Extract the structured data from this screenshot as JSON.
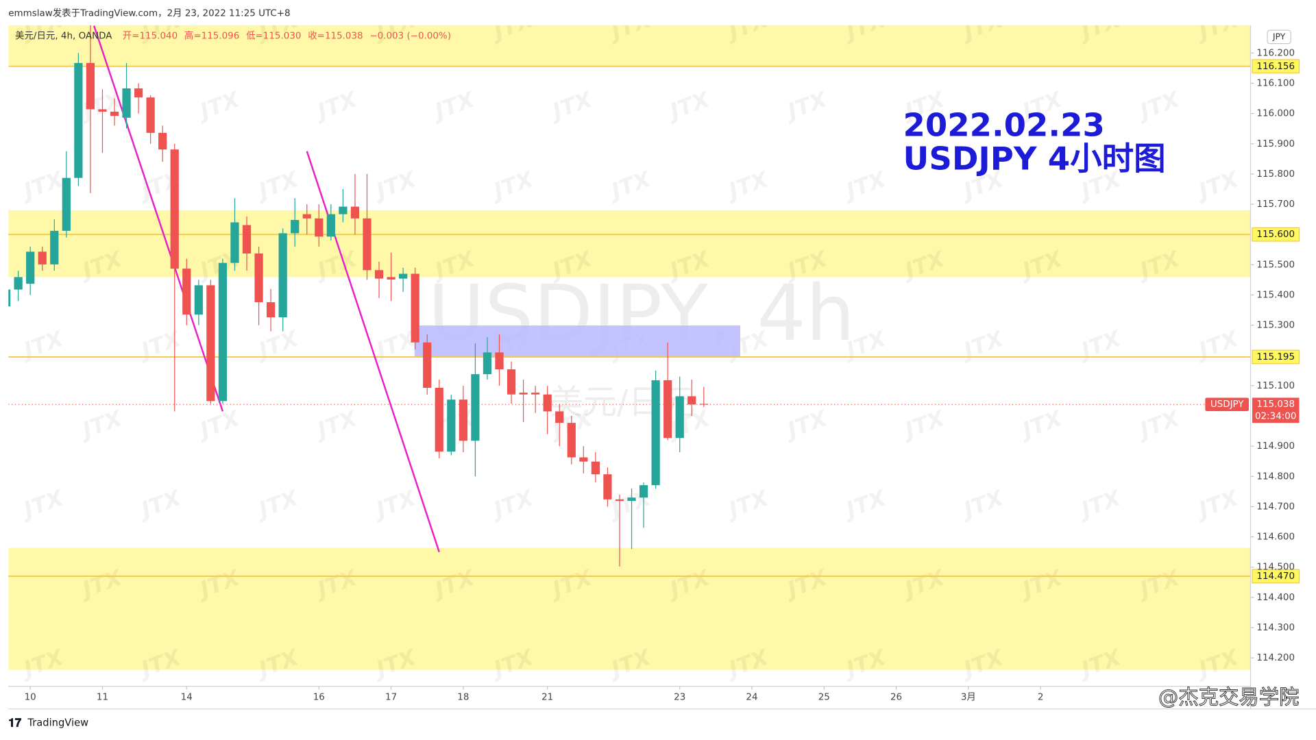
{
  "chart_data": {
    "type": "candlestick",
    "header": "emmslaw发表于TradingView.com，2月 23, 2022 11:25 UTC+8",
    "legend_title": "美元/日元, 4h, OANDA",
    "legend_values": [
      "开=115.040",
      "高=115.096",
      "低=115.030",
      "收=115.038",
      "−0.003 (−0.00%)"
    ],
    "currency": "JPY",
    "annotation": [
      "2022.02.23",
      "USDJPY 4小时图"
    ],
    "watermark": "USDJPY, 4h",
    "watermark_sub": "美元/日元",
    "tile_text": "JTX",
    "footer": "TradingView",
    "credit": "@杰克交易学院",
    "up_color": "#26a69a",
    "down_color": "#ef5350",
    "x": [
      0,
      1,
      2,
      3,
      4,
      5,
      6,
      7,
      8,
      9,
      10,
      11,
      12,
      13,
      14,
      15,
      16,
      17,
      18,
      19,
      20,
      21,
      22,
      23,
      24,
      25,
      26,
      27,
      28,
      29,
      30,
      31,
      32,
      33,
      34,
      35,
      36,
      37,
      38,
      39,
      40,
      41,
      42,
      43,
      44,
      45,
      46,
      47,
      48,
      49,
      50,
      51,
      52,
      53,
      54,
      55,
      56,
      57,
      58
    ],
    "open": [
      115.362,
      115.418,
      115.437,
      115.543,
      115.501,
      115.612,
      115.787,
      116.167,
      116.014,
      116.006,
      115.986,
      116.083,
      116.053,
      115.936,
      115.881,
      115.487,
      115.335,
      115.432,
      115.049,
      115.506,
      115.631,
      115.537,
      115.376,
      115.326,
      115.604,
      115.667,
      115.653,
      115.593,
      115.667,
      115.692,
      115.653,
      115.482,
      115.459,
      115.454,
      115.47,
      115.243,
      115.093,
      114.882,
      115.054,
      114.918,
      115.138,
      115.21,
      115.154,
      115.077,
      115.077,
      115.071,
      115.015,
      114.977,
      114.863,
      114.849,
      114.807,
      114.724,
      114.719,
      114.73,
      114.771,
      115.118,
      114.927,
      115.065,
      115.04
    ],
    "high": [
      115.44,
      115.48,
      115.56,
      115.56,
      115.65,
      115.875,
      116.2,
      116.292,
      116.08,
      116.05,
      116.167,
      116.1,
      116.06,
      115.96,
      115.9,
      115.52,
      115.45,
      115.45,
      115.52,
      115.72,
      115.66,
      115.56,
      115.42,
      115.62,
      115.72,
      115.7,
      115.7,
      115.7,
      115.75,
      115.8,
      115.8,
      115.51,
      115.54,
      115.49,
      115.49,
      115.27,
      115.12,
      115.07,
      115.1,
      115.24,
      115.26,
      115.27,
      115.18,
      115.12,
      115.1,
      115.1,
      115.04,
      115.0,
      114.9,
      114.88,
      114.83,
      114.74,
      114.76,
      114.78,
      115.15,
      115.243,
      115.13,
      115.12,
      115.096
    ],
    "low": [
      115.33,
      115.38,
      115.4,
      115.48,
      115.48,
      115.59,
      115.76,
      115.737,
      115.87,
      115.96,
      115.95,
      116.0,
      115.9,
      115.84,
      115.015,
      115.3,
      115.3,
      115.04,
      115.04,
      115.48,
      115.48,
      115.3,
      115.28,
      115.28,
      115.56,
      115.6,
      115.56,
      115.58,
      115.64,
      115.6,
      115.45,
      115.39,
      115.38,
      115.41,
      115.22,
      115.07,
      114.86,
      114.87,
      114.88,
      114.8,
      115.12,
      115.1,
      115.04,
      114.98,
      115.01,
      114.94,
      114.9,
      114.84,
      114.81,
      114.78,
      114.7,
      114.502,
      114.56,
      114.63,
      114.76,
      114.92,
      114.88,
      115.0,
      115.03
    ],
    "close": [
      115.418,
      115.459,
      115.543,
      115.501,
      115.612,
      115.787,
      116.167,
      116.014,
      116.006,
      115.992,
      116.083,
      116.053,
      115.936,
      115.881,
      115.487,
      115.335,
      115.432,
      115.049,
      115.506,
      115.64,
      115.537,
      115.376,
      115.326,
      115.604,
      115.648,
      115.653,
      115.593,
      115.667,
      115.692,
      115.653,
      115.482,
      115.454,
      115.451,
      115.47,
      115.243,
      115.093,
      114.882,
      115.054,
      114.918,
      115.138,
      115.21,
      115.154,
      115.071,
      115.071,
      115.071,
      115.015,
      114.977,
      114.863,
      114.849,
      114.807,
      114.724,
      114.719,
      114.73,
      114.771,
      115.118,
      114.927,
      115.065,
      115.038,
      115.038
    ],
    "xlim": [
      0.18,
      103.46
    ],
    "xticks": [
      {
        "value": 2,
        "label": "10"
      },
      {
        "value": 8,
        "label": "11"
      },
      {
        "value": 15,
        "label": "14"
      },
      {
        "value": 26,
        "label": "16"
      },
      {
        "value": 32,
        "label": "17"
      },
      {
        "value": 38,
        "label": "18"
      },
      {
        "value": 45,
        "label": "21"
      },
      {
        "value": 56,
        "label": "23"
      },
      {
        "value": 62,
        "label": "24"
      },
      {
        "value": 68,
        "label": "25"
      },
      {
        "value": 74,
        "label": "26"
      },
      {
        "value": 80,
        "label": "3月"
      },
      {
        "value": 86,
        "label": "2"
      }
    ],
    "ylim": [
      114.106,
      116.292
    ],
    "yticks": [
      {
        "value": 114.2,
        "label": "114.200"
      },
      {
        "value": 114.3,
        "label": "114.300"
      },
      {
        "value": 114.4,
        "label": "114.400"
      },
      {
        "value": 114.5,
        "label": "114.500"
      },
      {
        "value": 114.6,
        "label": "114.600"
      },
      {
        "value": 114.7,
        "label": "114.700"
      },
      {
        "value": 114.8,
        "label": "114.800"
      },
      {
        "value": 114.9,
        "label": "114.900"
      },
      {
        "value": 115.1,
        "label": "115.100"
      },
      {
        "value": 115.3,
        "label": "115.300"
      },
      {
        "value": 115.4,
        "label": "115.400"
      },
      {
        "value": 115.5,
        "label": "115.500"
      },
      {
        "value": 115.7,
        "label": "115.700"
      },
      {
        "value": 115.8,
        "label": "115.800"
      },
      {
        "value": 115.9,
        "label": "115.900"
      },
      {
        "value": 116,
        "label": "116.000"
      },
      {
        "value": 116.1,
        "label": "116.100"
      },
      {
        "value": 116.2,
        "label": "116.200"
      }
    ],
    "zones": [
      {
        "from": 116.156,
        "to": 116.292
      },
      {
        "from": 115.459,
        "to": 115.68
      },
      {
        "from": 114.161,
        "to": 114.564
      }
    ],
    "zone_color": "#fff8a8",
    "levels": [
      {
        "value": 116.156,
        "label": "116.156"
      },
      {
        "value": 115.6,
        "label": "115.600"
      },
      {
        "value": 115.195,
        "label": "115.195"
      },
      {
        "value": 114.47,
        "label": "114.470"
      }
    ],
    "level_color": "#f2c94c",
    "box": {
      "x": [
        33.95,
        61.03
      ],
      "y": [
        115.193,
        115.299
      ],
      "color": "#b8b8ff"
    },
    "trend_lines": [
      {
        "x": [
          7.3,
          18
        ],
        "y": [
          116.29,
          115.015
        ]
      },
      {
        "x": [
          25,
          36
        ],
        "y": [
          115.875,
          114.55
        ]
      }
    ],
    "trend_color": "#e91ec8",
    "last_price": {
      "symbol": "USDJPY",
      "value": 115.038,
      "label": "115.038",
      "countdown": "02:34:00"
    }
  }
}
